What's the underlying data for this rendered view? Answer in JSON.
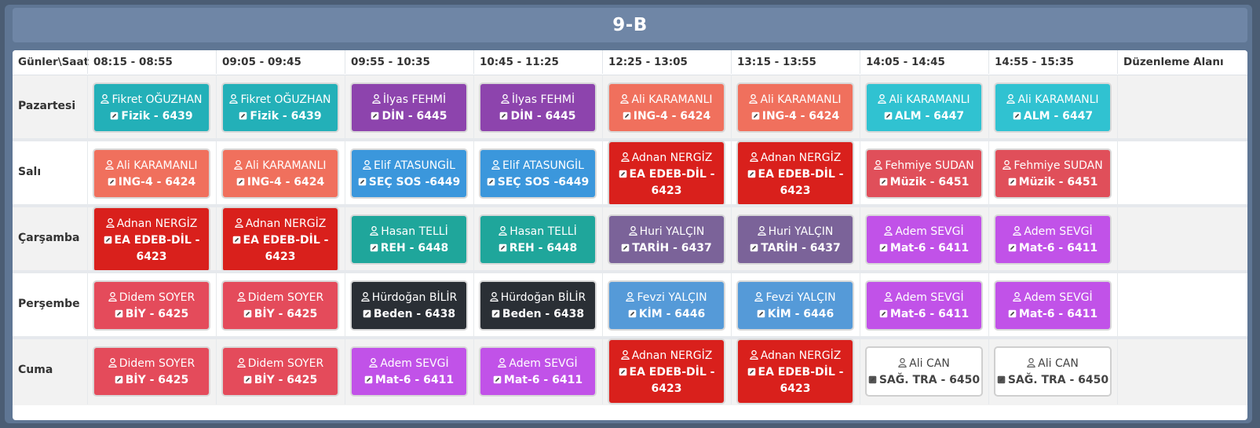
{
  "title": "9-B",
  "header": {
    "corner": "Günler\\Saat",
    "slots": [
      "08:15 - 08:55",
      "09:05 - 09:45",
      "09:55 - 10:35",
      "10:45 - 11:25",
      "12:25 - 13:05",
      "13:15 - 13:55",
      "14:05 - 14:45",
      "14:55 - 15:35"
    ],
    "edit": "Düzenleme Alanı"
  },
  "days": [
    {
      "name": "Pazartesi",
      "lessons": [
        {
          "teacher": "Fikret OĞUZHAN",
          "course": "Fizik - 6439",
          "color": "#23b0b8"
        },
        {
          "teacher": "Fikret OĞUZHAN",
          "course": "Fizik - 6439",
          "color": "#23b0b8"
        },
        {
          "teacher": "İlyas FEHMİ",
          "course": "DİN - 6445",
          "color": "#8d44ad"
        },
        {
          "teacher": "İlyas FEHMİ",
          "course": "DİN - 6445",
          "color": "#8d44ad"
        },
        {
          "teacher": "Ali KARAMANLI",
          "course": "ING-4 - 6424",
          "color": "#f0705d"
        },
        {
          "teacher": "Ali KARAMANLI",
          "course": "ING-4 - 6424",
          "color": "#f0705d"
        },
        {
          "teacher": "Ali KARAMANLI",
          "course": "ALM - 6447",
          "color": "#30c2d1"
        },
        {
          "teacher": "Ali KARAMANLI",
          "course": "ALM - 6447",
          "color": "#30c2d1"
        }
      ]
    },
    {
      "name": "Salı",
      "lessons": [
        {
          "teacher": "Ali KARAMANLI",
          "course": "ING-4 - 6424",
          "color": "#f0705d"
        },
        {
          "teacher": "Ali KARAMANLI",
          "course": "ING-4 - 6424",
          "color": "#f0705d"
        },
        {
          "teacher": "Elif ATASUNGİL",
          "course": "SEÇ SOS  -6449",
          "color": "#3b97dc"
        },
        {
          "teacher": "Elif ATASUNGİL",
          "course": "SEÇ SOS  -6449",
          "color": "#3b97dc"
        },
        {
          "teacher": "Adnan NERGİZ",
          "course": "EA EDEB-DİL - 6423",
          "color": "#d9201c"
        },
        {
          "teacher": "Adnan NERGİZ",
          "course": "EA EDEB-DİL - 6423",
          "color": "#d9201c"
        },
        {
          "teacher": "Fehmiye SUDAN",
          "course": "Müzik - 6451",
          "color": "#e04f5a"
        },
        {
          "teacher": "Fehmiye SUDAN",
          "course": "Müzik - 6451",
          "color": "#e04f5a"
        }
      ]
    },
    {
      "name": "Çarşamba",
      "lessons": [
        {
          "teacher": "Adnan NERGİZ",
          "course": "EA EDEB-DİL - 6423",
          "color": "#d9201c"
        },
        {
          "teacher": "Adnan NERGİZ",
          "course": "EA EDEB-DİL - 6423",
          "color": "#d9201c"
        },
        {
          "teacher": "Hasan TELLİ",
          "course": "REH - 6448",
          "color": "#1fa69b"
        },
        {
          "teacher": "Hasan TELLİ",
          "course": "REH - 6448",
          "color": "#1fa69b"
        },
        {
          "teacher": "Huri YALÇIN",
          "course": "TARİH - 6437",
          "color": "#7b6399"
        },
        {
          "teacher": "Huri YALÇIN",
          "course": "TARİH - 6437",
          "color": "#7b6399"
        },
        {
          "teacher": "Adem SEVGİ",
          "course": "Mat-6 - 6411",
          "color": "#c152e8"
        },
        {
          "teacher": "Adem SEVGİ",
          "course": "Mat-6 - 6411",
          "color": "#c152e8"
        }
      ]
    },
    {
      "name": "Perşembe",
      "lessons": [
        {
          "teacher": "Didem SOYER",
          "course": "BİY - 6425",
          "color": "#e44b5b"
        },
        {
          "teacher": "Didem SOYER",
          "course": "BİY - 6425",
          "color": "#e44b5b"
        },
        {
          "teacher": "Hürdoğan BİLİR",
          "course": "Beden - 6438",
          "color": "#2a2f35"
        },
        {
          "teacher": "Hürdoğan BİLİR",
          "course": "Beden - 6438",
          "color": "#2a2f35"
        },
        {
          "teacher": "Fevzi YALÇIN",
          "course": "KİM - 6446",
          "color": "#559ad8"
        },
        {
          "teacher": "Fevzi YALÇIN",
          "course": "KİM - 6446",
          "color": "#559ad8"
        },
        {
          "teacher": "Adem SEVGİ",
          "course": "Mat-6 - 6411",
          "color": "#c152e8"
        },
        {
          "teacher": "Adem SEVGİ",
          "course": "Mat-6 - 6411",
          "color": "#c152e8"
        }
      ]
    },
    {
      "name": "Cuma",
      "lessons": [
        {
          "teacher": "Didem SOYER",
          "course": "BİY - 6425",
          "color": "#e44b5b"
        },
        {
          "teacher": "Didem SOYER",
          "course": "BİY - 6425",
          "color": "#e44b5b"
        },
        {
          "teacher": "Adem SEVGİ",
          "course": "Mat-6 - 6411",
          "color": "#c152e8"
        },
        {
          "teacher": "Adem SEVGİ",
          "course": "Mat-6 - 6411",
          "color": "#c152e8"
        },
        {
          "teacher": "Adnan NERGİZ",
          "course": "EA EDEB-DİL - 6423",
          "color": "#d9201c"
        },
        {
          "teacher": "Adnan NERGİZ",
          "course": "EA EDEB-DİL - 6423",
          "color": "#d9201c"
        },
        {
          "teacher": "Ali CAN",
          "course": "SAĞ. TRA - 6450",
          "color": "#ffffff"
        },
        {
          "teacher": "Ali CAN",
          "course": "SAĞ. TRA - 6450",
          "color": "#ffffff"
        }
      ]
    }
  ],
  "icons": {
    "teacher": "user-icon",
    "course": "edit-icon"
  }
}
